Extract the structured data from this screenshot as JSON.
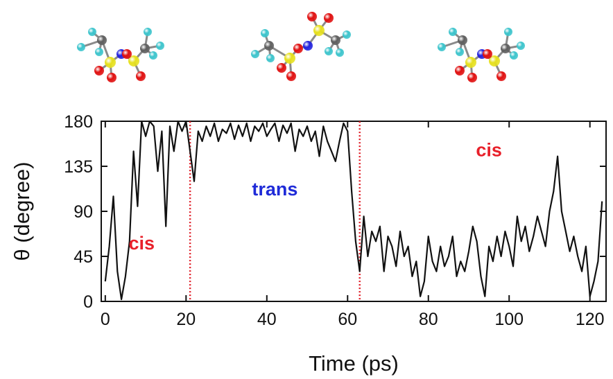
{
  "chart_data": {
    "type": "line",
    "title": "",
    "xlabel": "Time (ps)",
    "ylabel": "θ (degree)",
    "xlim": [
      -1,
      124
    ],
    "ylim": [
      0,
      180
    ],
    "xticks": [
      0,
      20,
      40,
      60,
      80,
      100,
      120
    ],
    "yticks": [
      0,
      45,
      90,
      135,
      180
    ],
    "grid": false,
    "legend": "none",
    "series": [
      {
        "color": "#111111",
        "x": [
          0,
          1,
          2,
          3,
          4,
          5,
          6,
          7,
          8,
          9,
          10,
          11,
          12,
          13,
          14,
          15,
          16,
          17,
          18,
          19,
          20,
          21,
          22,
          23,
          24,
          25,
          26,
          27,
          28,
          29,
          30,
          31,
          32,
          33,
          34,
          35,
          36,
          37,
          38,
          39,
          40,
          41,
          42,
          43,
          44,
          45,
          46,
          47,
          48,
          49,
          50,
          51,
          52,
          53,
          54,
          55,
          56,
          57,
          58,
          59,
          60,
          61,
          62,
          63,
          64,
          65,
          66,
          67,
          68,
          69,
          70,
          71,
          72,
          73,
          74,
          75,
          76,
          77,
          78,
          79,
          80,
          81,
          82,
          83,
          84,
          85,
          86,
          87,
          88,
          89,
          90,
          91,
          92,
          93,
          94,
          95,
          96,
          97,
          98,
          99,
          100,
          101,
          102,
          103,
          104,
          105,
          106,
          107,
          108,
          109,
          110,
          111,
          112,
          113,
          114,
          115,
          116,
          117,
          118,
          119,
          120,
          121,
          122,
          123
        ],
        "y": [
          20,
          55,
          105,
          30,
          2,
          25,
          60,
          150,
          95,
          180,
          165,
          180,
          175,
          130,
          170,
          75,
          175,
          150,
          180,
          170,
          180,
          150,
          120,
          170,
          160,
          175,
          165,
          178,
          160,
          172,
          168,
          178,
          162,
          176,
          165,
          178,
          160,
          175,
          170,
          178,
          165,
          172,
          178,
          160,
          176,
          168,
          178,
          150,
          172,
          165,
          175,
          160,
          170,
          145,
          175,
          160,
          150,
          140,
          160,
          178,
          170,
          110,
          60,
          30,
          85,
          45,
          70,
          60,
          75,
          30,
          65,
          55,
          35,
          70,
          45,
          55,
          25,
          40,
          5,
          20,
          65,
          40,
          30,
          55,
          35,
          45,
          65,
          25,
          40,
          30,
          50,
          75,
          60,
          25,
          5,
          55,
          40,
          65,
          45,
          70,
          55,
          35,
          85,
          60,
          75,
          50,
          65,
          85,
          70,
          55,
          90,
          110,
          145,
          90,
          70,
          50,
          65,
          45,
          30,
          55,
          5,
          20,
          40,
          100
        ]
      }
    ],
    "annotations": [
      {
        "text": "cis",
        "x": 9,
        "y": 52,
        "color": "#e8202a"
      },
      {
        "text": "trans",
        "x": 42,
        "y": 106,
        "color": "#1f2bd8"
      },
      {
        "text": "cis",
        "x": 95,
        "y": 145,
        "color": "#e8202a"
      }
    ],
    "vlines": [
      {
        "x": 21,
        "color": "#e0202a",
        "style": "dotted"
      },
      {
        "x": 63,
        "color": "#e0202a",
        "style": "dotted"
      }
    ]
  },
  "molecules": [
    {
      "icon": "molecule-cis-ball-and-stick"
    },
    {
      "icon": "molecule-trans-ball-and-stick"
    },
    {
      "icon": "molecule-cis-ball-and-stick"
    }
  ],
  "atom_colors": {
    "carbon": "#5f5f5f",
    "fluorine": "#3cc4cc",
    "sulfur": "#e6e01e",
    "oxygen": "#e01010",
    "nitrogen": "#2222dd",
    "bond": "#8a8a8a"
  }
}
